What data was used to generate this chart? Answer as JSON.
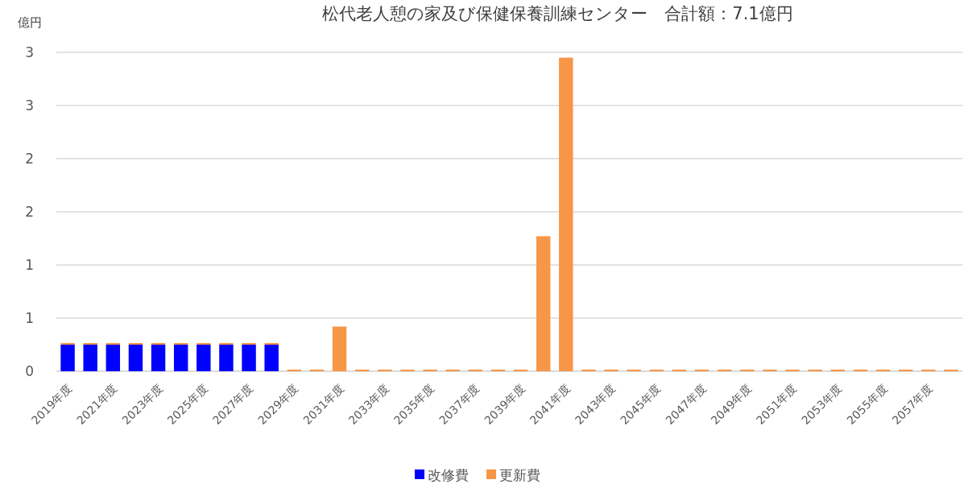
{
  "chart_data": {
    "type": "bar",
    "title": "松代老人憩の家及び保健保養訓練センター　合計額：7.1億円",
    "ylabel": "億円",
    "stacked": true,
    "legend": "bottom",
    "grid": "y",
    "categories": [
      "2019年度",
      null,
      "2021年度",
      null,
      "2023年度",
      null,
      "2025年度",
      null,
      "2027年度",
      null,
      "2029年度",
      null,
      "2031年度",
      null,
      "2033年度",
      null,
      "2035年度",
      null,
      "2037年度",
      null,
      "2039年度",
      null,
      "2041年度",
      null,
      "2043年度",
      null,
      "2045年度",
      null,
      "2047年度",
      null,
      "2049年度",
      null,
      "2051年度",
      null,
      "2053年度",
      null,
      "2055年度",
      null,
      "2057年度",
      null
    ],
    "ylim": [
      0,
      3
    ],
    "yticks": [
      0,
      {
        "value": 0.5,
        "label": "1"
      },
      {
        "value": 1,
        "label": "1"
      },
      {
        "value": 1.5,
        "label": "2"
      },
      {
        "value": 2,
        "label": "2"
      },
      {
        "value": 2.5,
        "label": "3"
      },
      {
        "value": 3,
        "label": "3"
      }
    ],
    "series": [
      {
        "name": "改修費",
        "color": "#0000ff",
        "values": [
          0.25,
          0.25,
          0.25,
          0.25,
          0.25,
          0.25,
          0.25,
          0.25,
          0.25,
          0.25,
          null,
          null,
          null,
          null,
          null,
          null,
          null,
          null,
          null,
          null,
          null,
          null,
          null,
          null,
          null,
          null,
          null,
          null,
          null,
          null,
          null,
          null,
          null,
          null,
          null,
          null,
          null,
          null,
          null,
          null
        ]
      },
      {
        "name": "更新費",
        "color": "#f79646",
        "values": [
          0,
          0,
          0,
          0,
          0,
          0,
          0,
          0,
          0,
          0,
          0,
          0,
          0.42,
          0,
          0,
          0,
          0,
          0,
          0,
          0,
          0,
          1.27,
          2.95,
          0,
          0,
          0,
          0,
          0,
          0,
          0,
          0,
          0,
          0,
          0,
          0,
          0,
          0,
          0,
          0,
          0
        ]
      }
    ]
  }
}
